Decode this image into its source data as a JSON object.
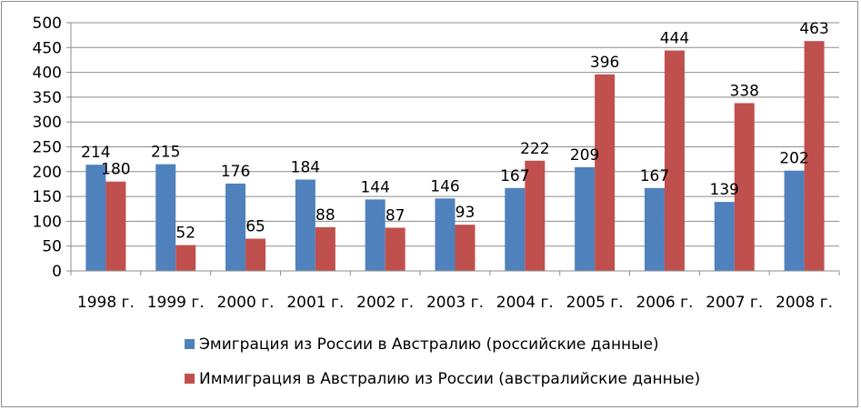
{
  "chart_data": {
    "type": "bar",
    "title": "",
    "xlabel": "",
    "ylabel": "",
    "ylim": [
      0,
      500
    ],
    "yticks": [
      0,
      50,
      100,
      150,
      200,
      250,
      300,
      350,
      400,
      450,
      500
    ],
    "grid": true,
    "legend_position": "bottom",
    "categories": [
      "1998 г.",
      "1999 г.",
      "2000 г.",
      "2001 г.",
      "2002 г.",
      "2003 г.",
      "2004 г.",
      "2005 г.",
      "2006 г.",
      "2007 г.",
      "2008 г."
    ],
    "series": [
      {
        "name": "Эмиграция из России в Австралию (российские данные)",
        "color": "#4f81bd",
        "values": [
          214,
          215,
          176,
          184,
          144,
          146,
          167,
          209,
          167,
          139,
          202
        ]
      },
      {
        "name": "Иммиграция в Австралию из России (австралийские данные)",
        "color": "#c0504d",
        "values": [
          180,
          52,
          65,
          88,
          87,
          93,
          222,
          396,
          444,
          338,
          463
        ]
      }
    ]
  }
}
